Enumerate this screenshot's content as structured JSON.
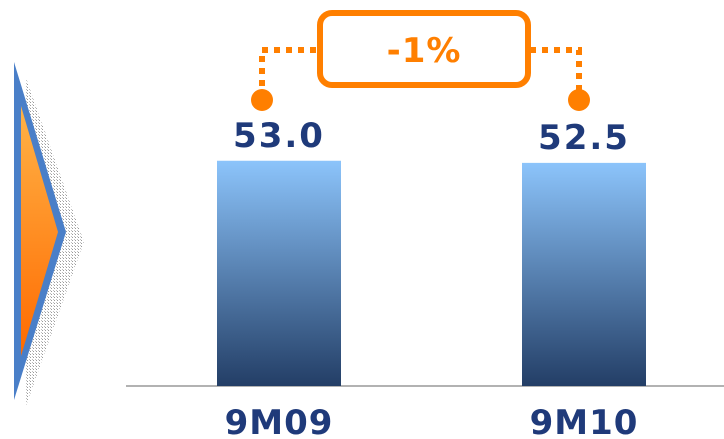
{
  "chart_data": {
    "type": "bar",
    "categories": [
      "9M09",
      "9M10"
    ],
    "values": [
      53.0,
      52.5
    ],
    "value_labels": [
      "53.0",
      "52.5"
    ],
    "change_label": "-1%",
    "title": "",
    "xlabel": "",
    "ylabel": "",
    "ylim": [
      0,
      60
    ],
    "grid": false
  },
  "colors": {
    "bar_top": "#8cc4fb",
    "bar_bottom": "#233e66",
    "label": "#1f3a7a",
    "accent": "#ff7f00",
    "arrow_fill_top": "#ffb347",
    "arrow_fill_bottom": "#ff6a00",
    "arrow_border": "#4a7fc8",
    "axis": "#999999"
  },
  "icons": {
    "side_arrow": "chevron-right-icon"
  }
}
